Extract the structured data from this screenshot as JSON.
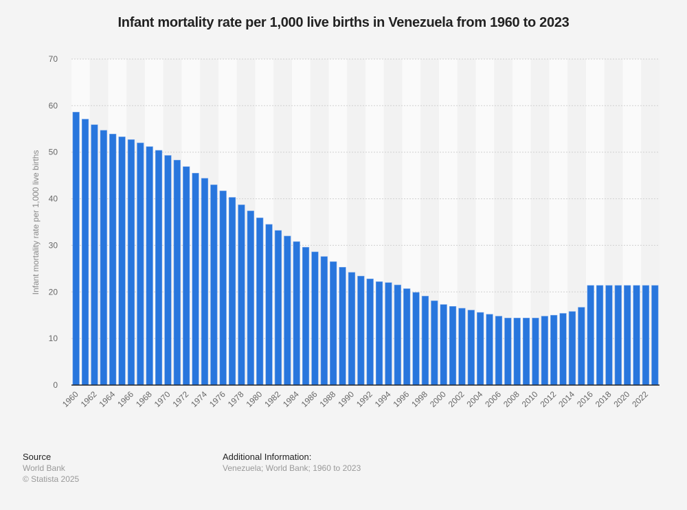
{
  "chart_data": {
    "type": "bar",
    "title": "Infant mortality rate per 1,000 live births in Venezuela from 1960 to 2023",
    "xlabel": "",
    "ylabel": "Infant mortality rate per 1,000 live births",
    "ylim": [
      0,
      70
    ],
    "yticks": [
      0,
      10,
      20,
      30,
      40,
      50,
      60,
      70
    ],
    "grid": true,
    "bar_color": "#2876dd",
    "categories": [
      "1960",
      "1961",
      "1962",
      "1963",
      "1964",
      "1965",
      "1966",
      "1967",
      "1968",
      "1969",
      "1970",
      "1971",
      "1972",
      "1973",
      "1974",
      "1975",
      "1976",
      "1977",
      "1978",
      "1979",
      "1980",
      "1981",
      "1982",
      "1983",
      "1984",
      "1985",
      "1986",
      "1987",
      "1988",
      "1989",
      "1990",
      "1991",
      "1992",
      "1993",
      "1994",
      "1995",
      "1996",
      "1997",
      "1998",
      "1999",
      "2000",
      "2001",
      "2002",
      "2003",
      "2004",
      "2005",
      "2006",
      "2007",
      "2008",
      "2009",
      "2010",
      "2011",
      "2012",
      "2013",
      "2014",
      "2015",
      "2016",
      "2017",
      "2018",
      "2019",
      "2020",
      "2021",
      "2022",
      "2023"
    ],
    "xtick_labels": [
      "1960",
      "1962",
      "1964",
      "1966",
      "1968",
      "1970",
      "1972",
      "1974",
      "1976",
      "1978",
      "1980",
      "1982",
      "1984",
      "1986",
      "1988",
      "1990",
      "1992",
      "1994",
      "1996",
      "1998",
      "2000",
      "2002",
      "2004",
      "2006",
      "2008",
      "2010",
      "2012",
      "2014",
      "2016",
      "2018",
      "2020",
      "2022"
    ],
    "values": [
      58.6,
      57.1,
      55.9,
      54.7,
      53.9,
      53.3,
      52.7,
      52.0,
      51.2,
      50.4,
      49.3,
      48.3,
      46.9,
      45.5,
      44.4,
      43.0,
      41.7,
      40.3,
      38.7,
      37.4,
      35.9,
      34.5,
      33.2,
      32.0,
      30.8,
      29.6,
      28.6,
      27.6,
      26.5,
      25.3,
      24.2,
      23.4,
      22.8,
      22.2,
      22.0,
      21.5,
      20.7,
      19.9,
      19.1,
      18.1,
      17.3,
      16.9,
      16.5,
      16.1,
      15.6,
      15.2,
      14.8,
      14.4,
      14.4,
      14.4,
      14.4,
      14.8,
      15.0,
      15.4,
      15.8,
      16.7,
      21.4,
      21.4,
      21.4,
      21.4,
      21.4,
      21.4,
      21.4,
      21.4
    ]
  },
  "footer": {
    "source_heading": "Source",
    "source_name": "World Bank",
    "copyright": "© Statista 2025",
    "additional_heading": "Additional Information:",
    "additional_text": "Venezuela; World Bank; 1960 to 2023"
  }
}
